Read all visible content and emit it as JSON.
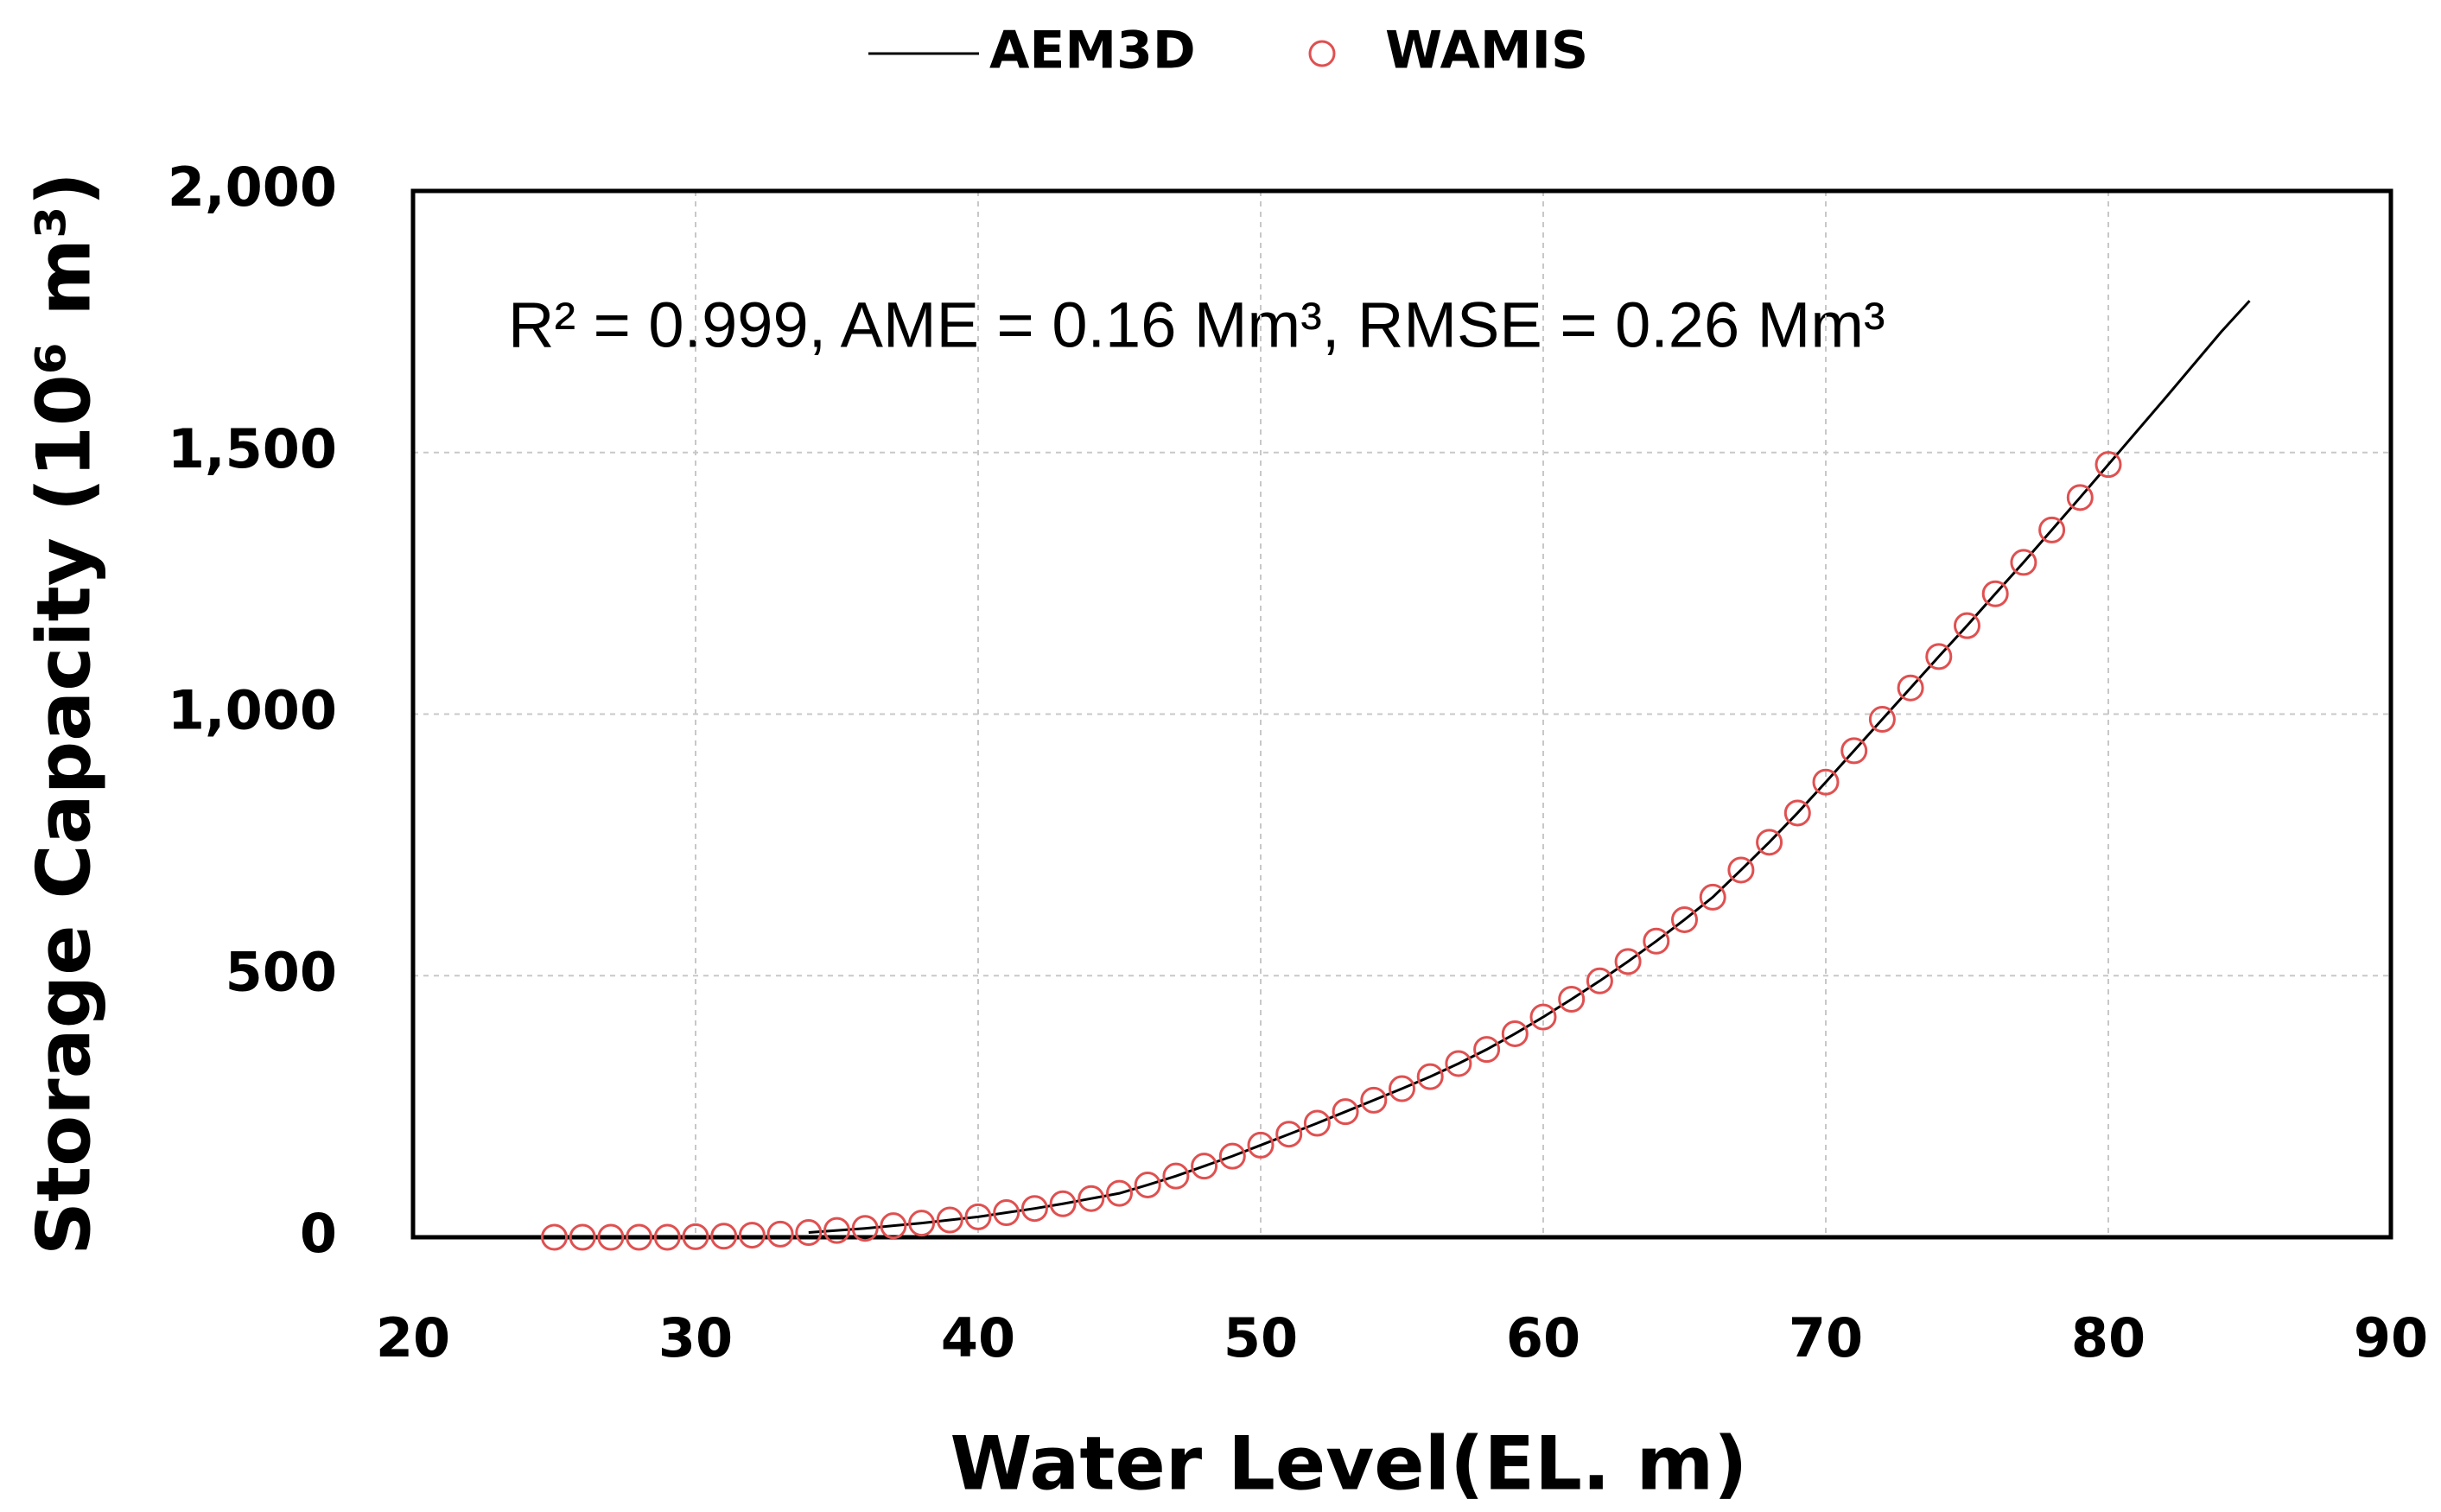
{
  "chart_data": {
    "type": "line",
    "x_label": "Water Level(EL. m)",
    "y_label": "Storage Capacity (10⁶ m³)",
    "annotation": "R² = 0.999, AME = 0.16 Mm³, RMSE = 0.26 Mm³",
    "xlim": [
      20,
      90
    ],
    "xticks": [
      20,
      30,
      40,
      50,
      60,
      70,
      80,
      90
    ],
    "ylim": [
      0,
      2000
    ],
    "yticks": [
      0,
      500,
      {
        "value": 1000,
        "label": "1,000"
      },
      {
        "value": 1500,
        "label": "1,500"
      },
      {
        "value": 2000,
        "label": "2,000"
      }
    ],
    "grid": true,
    "series": [
      {
        "name": "AEM3D",
        "type": "line",
        "color": "#000000",
        "x": [
          34,
          35,
          36,
          37,
          38,
          39,
          40,
          41,
          42,
          43,
          44,
          45,
          46,
          47,
          48,
          49,
          50,
          51,
          52,
          53,
          54,
          55,
          56,
          57,
          58,
          59,
          60,
          61,
          62,
          63,
          64,
          65,
          66,
          67,
          68,
          69,
          70,
          71,
          72,
          73,
          74,
          75,
          76,
          77,
          78,
          79,
          80,
          81,
          82,
          83,
          84,
          85
        ],
        "values": [
          9,
          13,
          17,
          22,
          27,
          33,
          39,
          47,
          55,
          64,
          74,
          84,
          100,
          117,
          136,
          155,
          176,
          197,
          218,
          240,
          262,
          284,
          307,
          332,
          359,
          389,
          421,
          455,
          490,
          527,
          566,
          607,
          650,
          702,
          755,
          811,
          870,
          930,
          990,
          1050,
          1110,
          1169,
          1230,
          1290,
          1352,
          1414,
          1477,
          1540,
          1603,
          1667,
          1731,
          1790
        ]
      },
      {
        "name": "WAMIS",
        "type": "scatter",
        "color": "#e05050",
        "x": [
          25,
          26,
          27,
          28,
          29,
          30,
          31,
          32,
          33,
          34,
          35,
          36,
          37,
          38,
          39,
          40,
          41,
          42,
          43,
          44,
          45,
          46,
          47,
          48,
          49,
          50,
          51,
          52,
          53,
          54,
          55,
          56,
          57,
          58,
          59,
          60,
          61,
          62,
          63,
          64,
          65,
          66,
          67,
          68,
          69,
          70,
          71,
          72,
          73,
          74,
          75,
          76,
          77,
          78,
          79,
          80
        ],
        "values": [
          0,
          0,
          0,
          0,
          0,
          1,
          2,
          4,
          6,
          9,
          13,
          17,
          22,
          27,
          33,
          39,
          47,
          55,
          64,
          74,
          84,
          100,
          117,
          136,
          155,
          176,
          197,
          218,
          240,
          262,
          284,
          307,
          332,
          359,
          389,
          421,
          455,
          490,
          527,
          566,
          607,
          650,
          702,
          755,
          811,
          870,
          930,
          990,
          1050,
          1110,
          1169,
          1230,
          1290,
          1352,
          1414,
          1477
        ]
      }
    ]
  }
}
